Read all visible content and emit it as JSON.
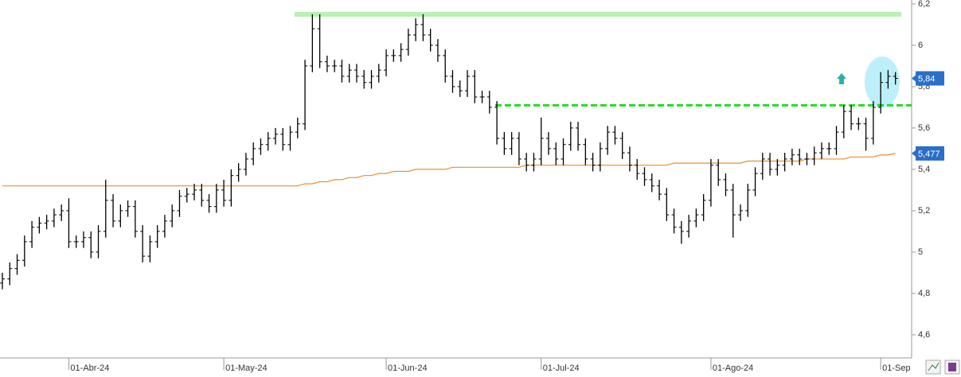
{
  "chart_data": {
    "type": "ohlc",
    "categories": [
      null,
      null,
      null,
      null,
      null,
      null,
      null,
      null,
      null,
      "01-Abr-24",
      null,
      null,
      null,
      null,
      null,
      null,
      null,
      null,
      null,
      null,
      null,
      null,
      null,
      null,
      null,
      null,
      null,
      null,
      null,
      null,
      "01-May-24",
      null,
      null,
      null,
      null,
      null,
      null,
      null,
      null,
      null,
      null,
      null,
      null,
      null,
      null,
      null,
      null,
      null,
      null,
      null,
      null,
      null,
      "01-Jun-24",
      null,
      null,
      null,
      null,
      null,
      null,
      null,
      null,
      null,
      null,
      null,
      null,
      null,
      null,
      null,
      null,
      null,
      null,
      null,
      null,
      "01-Jul-24",
      null,
      null,
      null,
      null,
      null,
      null,
      null,
      null,
      null,
      null,
      null,
      null,
      null,
      null,
      null,
      null,
      null,
      null,
      null,
      null,
      null,
      null,
      "01-Ago-24",
      null,
      null,
      null,
      null,
      null,
      null,
      null,
      null,
      null,
      null,
      null,
      null,
      null,
      null,
      null,
      null,
      null,
      null,
      null,
      null,
      null,
      null,
      "01-Sep",
      null,
      null
    ],
    "open": [
      4.85,
      4.87,
      4.92,
      4.96,
      5.05,
      5.12,
      5.14,
      5.15,
      5.18,
      5.2,
      5.05,
      5.05,
      5.07,
      5.0,
      5.1,
      5.25,
      5.15,
      5.2,
      5.22,
      5.1,
      4.98,
      5.05,
      5.1,
      5.15,
      5.2,
      5.27,
      5.28,
      5.3,
      5.25,
      5.22,
      5.3,
      5.25,
      5.37,
      5.4,
      5.45,
      5.5,
      5.52,
      5.55,
      5.57,
      5.52,
      5.58,
      5.62,
      5.9,
      6.08,
      5.92,
      5.9,
      5.9,
      5.85,
      5.88,
      5.85,
      5.82,
      5.85,
      5.88,
      5.95,
      5.95,
      5.98,
      6.05,
      6.1,
      6.05,
      6.0,
      5.95,
      5.85,
      5.8,
      5.78,
      5.85,
      5.75,
      5.75,
      5.7,
      5.55,
      5.5,
      5.55,
      5.45,
      5.42,
      5.45,
      5.55,
      5.5,
      5.45,
      5.52,
      5.6,
      5.52,
      5.45,
      5.42,
      5.5,
      5.58,
      5.55,
      5.48,
      5.42,
      5.38,
      5.35,
      5.32,
      5.28,
      5.18,
      5.12,
      5.1,
      5.15,
      5.18,
      5.25,
      5.42,
      5.35,
      5.3,
      5.18,
      5.2,
      5.3,
      5.38,
      5.45,
      5.4,
      5.42,
      5.45,
      5.47,
      5.45,
      5.45,
      5.48,
      5.5,
      5.5,
      5.58,
      5.68,
      5.62,
      5.62,
      5.55,
      5.7,
      5.82,
      5.85
    ],
    "high": [
      4.9,
      4.95,
      4.99,
      5.08,
      5.15,
      5.17,
      5.18,
      5.21,
      5.23,
      5.26,
      5.08,
      5.1,
      5.1,
      5.13,
      5.35,
      5.28,
      5.23,
      5.25,
      5.25,
      5.13,
      5.08,
      5.13,
      5.18,
      5.23,
      5.3,
      5.31,
      5.33,
      5.33,
      5.28,
      5.33,
      5.35,
      5.4,
      5.43,
      5.48,
      5.53,
      5.55,
      5.58,
      5.6,
      5.6,
      5.61,
      5.65,
      5.93,
      6.15,
      6.15,
      5.95,
      5.93,
      5.93,
      5.91,
      5.91,
      5.88,
      5.88,
      5.91,
      5.98,
      5.98,
      6.01,
      6.08,
      6.13,
      6.15,
      6.08,
      6.03,
      5.98,
      5.88,
      5.83,
      5.88,
      5.88,
      5.78,
      5.78,
      5.73,
      5.58,
      5.58,
      5.58,
      5.48,
      5.48,
      5.65,
      5.58,
      5.53,
      5.55,
      5.63,
      5.63,
      5.55,
      5.48,
      5.53,
      5.61,
      5.61,
      5.58,
      5.51,
      5.45,
      5.41,
      5.38,
      5.35,
      5.31,
      5.21,
      5.15,
      5.18,
      5.21,
      5.28,
      5.45,
      5.45,
      5.38,
      5.33,
      5.23,
      5.33,
      5.41,
      5.48,
      5.48,
      5.45,
      5.48,
      5.5,
      5.5,
      5.48,
      5.51,
      5.53,
      5.53,
      5.61,
      5.71,
      5.71,
      5.65,
      5.65,
      5.73,
      5.87,
      5.88,
      5.87
    ],
    "low": [
      4.82,
      4.84,
      4.89,
      4.93,
      5.02,
      5.09,
      5.11,
      5.12,
      5.15,
      5.02,
      5.02,
      5.02,
      4.97,
      4.97,
      5.07,
      5.12,
      5.12,
      5.17,
      5.07,
      4.95,
      4.95,
      5.02,
      5.07,
      5.12,
      5.17,
      5.24,
      5.25,
      5.22,
      5.19,
      5.19,
      5.22,
      5.22,
      5.34,
      5.37,
      5.42,
      5.47,
      5.49,
      5.52,
      5.49,
      5.49,
      5.55,
      5.59,
      5.87,
      5.89,
      5.87,
      5.87,
      5.82,
      5.82,
      5.82,
      5.79,
      5.79,
      5.82,
      5.85,
      5.92,
      5.92,
      5.95,
      6.02,
      6.02,
      5.97,
      5.92,
      5.82,
      5.77,
      5.75,
      5.75,
      5.72,
      5.72,
      5.67,
      5.52,
      5.47,
      5.47,
      5.42,
      5.39,
      5.39,
      5.42,
      5.47,
      5.42,
      5.42,
      5.49,
      5.49,
      5.42,
      5.39,
      5.39,
      5.47,
      5.52,
      5.45,
      5.39,
      5.35,
      5.32,
      5.29,
      5.25,
      5.15,
      5.09,
      5.04,
      5.07,
      5.12,
      5.15,
      5.22,
      5.32,
      5.27,
      5.07,
      5.15,
      5.17,
      5.27,
      5.35,
      5.37,
      5.37,
      5.39,
      5.42,
      5.42,
      5.42,
      5.42,
      5.45,
      5.47,
      5.47,
      5.55,
      5.59,
      5.59,
      5.49,
      5.52,
      5.67,
      5.79,
      5.81
    ],
    "close": [
      4.87,
      4.92,
      4.96,
      5.05,
      5.12,
      5.14,
      5.15,
      5.18,
      5.2,
      5.05,
      5.05,
      5.07,
      5.0,
      5.1,
      5.25,
      5.15,
      5.2,
      5.22,
      5.1,
      4.98,
      5.05,
      5.1,
      5.15,
      5.2,
      5.27,
      5.28,
      5.3,
      5.25,
      5.22,
      5.3,
      5.25,
      5.37,
      5.4,
      5.45,
      5.5,
      5.52,
      5.55,
      5.57,
      5.52,
      5.58,
      5.62,
      5.9,
      6.08,
      5.92,
      5.9,
      5.9,
      5.85,
      5.88,
      5.85,
      5.82,
      5.85,
      5.88,
      5.95,
      5.95,
      5.98,
      6.05,
      6.1,
      6.05,
      6.0,
      5.95,
      5.85,
      5.8,
      5.78,
      5.85,
      5.75,
      5.75,
      5.7,
      5.55,
      5.5,
      5.55,
      5.45,
      5.42,
      5.45,
      5.55,
      5.5,
      5.45,
      5.52,
      5.6,
      5.52,
      5.45,
      5.42,
      5.5,
      5.58,
      5.55,
      5.48,
      5.42,
      5.38,
      5.35,
      5.32,
      5.28,
      5.18,
      5.12,
      5.1,
      5.15,
      5.18,
      5.25,
      5.42,
      5.35,
      5.3,
      5.18,
      5.2,
      5.3,
      5.38,
      5.45,
      5.4,
      5.42,
      5.45,
      5.47,
      5.45,
      5.45,
      5.48,
      5.5,
      5.5,
      5.58,
      5.68,
      5.62,
      5.62,
      5.55,
      5.7,
      5.82,
      5.85,
      5.84
    ],
    "color": "#000000",
    "last_close": {
      "value": 5.84,
      "label": "5,84",
      "color": "#2a6fc9"
    },
    "overlay": {
      "type": "line",
      "color": "#e8902a",
      "values": [
        5.32,
        5.32,
        5.32,
        5.32,
        5.32,
        5.32,
        5.32,
        5.32,
        5.32,
        5.32,
        5.32,
        5.32,
        5.32,
        5.32,
        5.32,
        5.32,
        5.32,
        5.32,
        5.32,
        5.32,
        5.32,
        5.32,
        5.32,
        5.32,
        5.32,
        5.32,
        5.32,
        5.32,
        5.32,
        5.32,
        5.32,
        5.32,
        5.32,
        5.32,
        5.32,
        5.32,
        5.32,
        5.32,
        5.32,
        5.32,
        5.32,
        5.33,
        5.33,
        5.34,
        5.34,
        5.35,
        5.35,
        5.36,
        5.36,
        5.37,
        5.37,
        5.38,
        5.38,
        5.39,
        5.39,
        5.39,
        5.4,
        5.4,
        5.4,
        5.4,
        5.4,
        5.41,
        5.41,
        5.41,
        5.41,
        5.41,
        5.41,
        5.41,
        5.41,
        5.41,
        5.41,
        5.42,
        5.42,
        5.42,
        5.42,
        5.42,
        5.42,
        5.42,
        5.42,
        5.42,
        5.42,
        5.42,
        5.42,
        5.42,
        5.42,
        5.42,
        5.42,
        5.42,
        5.42,
        5.42,
        5.42,
        5.43,
        5.43,
        5.43,
        5.43,
        5.43,
        5.43,
        5.43,
        5.43,
        5.43,
        5.43,
        5.44,
        5.44,
        5.44,
        5.44,
        5.44,
        5.44,
        5.44,
        5.44,
        5.45,
        5.45,
        5.45,
        5.45,
        5.45,
        5.45,
        5.46,
        5.46,
        5.46,
        5.46,
        5.47,
        5.47,
        5.477
      ],
      "last": {
        "value": 5.477,
        "label": "5,477",
        "color": "#2a6fc9"
      }
    },
    "levels": [
      {
        "value": 6.15,
        "color": "#b8f2b0",
        "style": "solid"
      },
      {
        "value": 5.71,
        "color": "#22dd22",
        "style": "dashed"
      }
    ],
    "ylim": [
      4.488,
      6.219
    ],
    "yticks": [
      {
        "value": 4.6,
        "label": "4,6"
      },
      {
        "value": 4.8,
        "label": "4,8"
      },
      5,
      {
        "value": 5.2,
        "label": "5,2"
      },
      {
        "value": 5.4,
        "label": "5,4"
      },
      {
        "value": 5.6,
        "label": "5,6"
      },
      {
        "value": 5.8,
        "label": "5,8"
      },
      6,
      {
        "value": 6.2,
        "label": "6,2"
      }
    ]
  }
}
